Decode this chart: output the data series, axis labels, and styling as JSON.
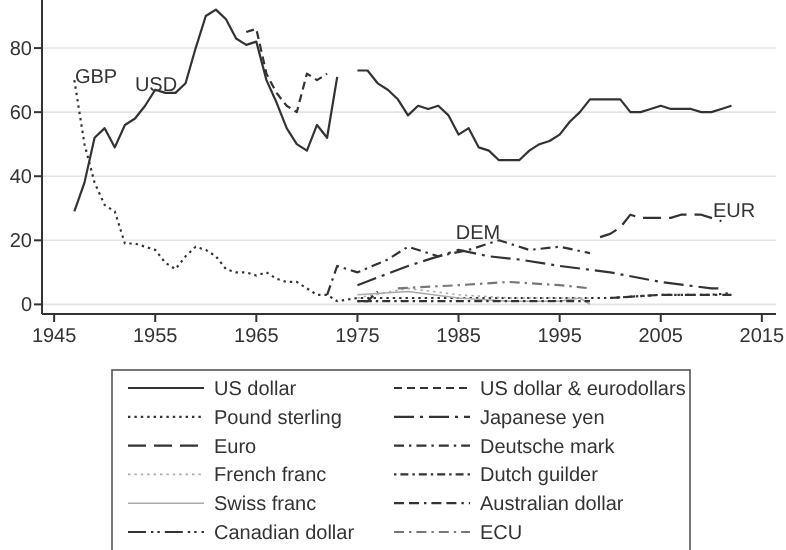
{
  "chart_data": {
    "type": "line",
    "xlim": [
      1943.8,
      2016.4
    ],
    "xticks": [
      1945,
      1955,
      1965,
      1975,
      1985,
      1995,
      2005,
      2015
    ],
    "ylim": [
      -3,
      95
    ],
    "yticks": [
      0,
      20,
      40,
      60,
      80
    ],
    "grid": "y",
    "legend": "bottom",
    "series": [
      {
        "name": "US dollar",
        "color": "#333333",
        "line_style": "solid",
        "x": [
          1947,
          1948,
          1949,
          1950,
          1951,
          1952,
          1953,
          1954,
          1955,
          1956,
          1957,
          1958,
          1959,
          1960,
          1961,
          1962,
          1963,
          1964,
          1965,
          1966,
          1967,
          1968,
          1969,
          1970,
          1971,
          1972,
          1973,
          1974,
          1975,
          1976,
          1977,
          1978,
          1979,
          1980,
          1981,
          1982,
          1983,
          1984,
          1985,
          1986,
          1987,
          1988,
          1989,
          1990,
          1991,
          1992,
          1993,
          1994,
          1995,
          1996,
          1997,
          1998,
          1999,
          2000,
          2001,
          2002,
          2003,
          2004,
          2005,
          2006,
          2007,
          2008,
          2009,
          2010,
          2011,
          2012
        ],
        "values": [
          29,
          38,
          52,
          55,
          49,
          56,
          58,
          62,
          67,
          66,
          66,
          69,
          80,
          90,
          92,
          89,
          83,
          81,
          82,
          70,
          63,
          55,
          50,
          48,
          56,
          52,
          71,
          null,
          73,
          73,
          69,
          67,
          64,
          59,
          62,
          61,
          62,
          59,
          53,
          55,
          49,
          48,
          45,
          45,
          45,
          48,
          50,
          51,
          53,
          57,
          60,
          64,
          64,
          64,
          64,
          60,
          60,
          61,
          62,
          61,
          61,
          61,
          60,
          60,
          61,
          62
        ]
      },
      {
        "name": "Pound sterling",
        "color": "#333333",
        "line_style": "dotted",
        "x": [
          1947,
          1948,
          1949,
          1950,
          1951,
          1952,
          1953,
          1954,
          1955,
          1956,
          1957,
          1958,
          1959,
          1960,
          1961,
          1962,
          1963,
          1964,
          1965,
          1966,
          1967,
          1968,
          1969,
          1970,
          1971,
          1972,
          1973,
          1975,
          1980,
          1985,
          1990,
          1995,
          2000,
          2005,
          2010,
          2012
        ],
        "values": [
          70,
          50,
          38,
          31,
          29,
          19,
          19,
          18,
          17,
          13,
          11,
          15,
          18,
          17,
          15,
          11,
          10,
          10,
          9,
          10,
          8,
          7,
          7,
          5,
          3,
          3,
          1,
          2,
          2,
          2,
          2,
          2,
          2,
          3,
          3,
          3.5
        ]
      },
      {
        "name": "Euro",
        "color": "#333333",
        "line_style": "longdash",
        "x": [
          1999,
          2000,
          2001,
          2002,
          2003,
          2004,
          2005,
          2006,
          2007,
          2008,
          2009,
          2010,
          2011
        ],
        "values": [
          21,
          22,
          24,
          28,
          27,
          27,
          27,
          27,
          28,
          28,
          28,
          27,
          26
        ]
      },
      {
        "name": "French franc",
        "color": "#aaaaaa",
        "line_style": "dotted",
        "x": [
          1975,
          1980,
          1985,
          1990,
          1995,
          1998
        ],
        "values": [
          2,
          5,
          3,
          2,
          2,
          2
        ]
      },
      {
        "name": "Swiss franc",
        "color": "#aaaaaa",
        "line_style": "solid",
        "x": [
          1975,
          1980,
          1985,
          1990,
          1995,
          1997,
          1998
        ],
        "values": [
          3,
          4,
          2,
          1,
          1,
          2,
          0
        ]
      },
      {
        "name": "Canadian dollar",
        "color": "#333333",
        "line_style": "longdashdotdot",
        "x": [
          1975,
          1976,
          1977
        ],
        "values": [
          1,
          1,
          4
        ]
      },
      {
        "name": "US dollar & eurodollars",
        "color": "#333333",
        "line_style": "dashed",
        "x": [
          1964,
          1965,
          1966,
          1967,
          1968,
          1969,
          1970,
          1971,
          1972
        ],
        "values": [
          85,
          86,
          72,
          66,
          62,
          60,
          72,
          70,
          72
        ]
      },
      {
        "name": "Japanese yen",
        "color": "#333333",
        "line_style": "longdashdot",
        "x": [
          1975,
          1980,
          1985,
          1988,
          1991,
          1995,
          2000,
          2005,
          2010,
          2011
        ],
        "values": [
          6,
          12,
          17,
          15,
          14,
          12,
          10,
          7,
          5,
          5
        ]
      },
      {
        "name": "Deutsche mark",
        "color": "#333333",
        "line_style": "dashdot",
        "x": [
          1972,
          1973,
          1975,
          1978,
          1980,
          1983,
          1986,
          1989,
          1992,
          1995,
          1998
        ],
        "values": [
          3,
          12,
          10,
          14,
          18,
          15,
          17,
          20,
          17,
          18,
          16
        ]
      },
      {
        "name": "Dutch guilder",
        "color": "#333333",
        "line_style": "dotdash",
        "x": [
          1975,
          1980,
          1985,
          1990,
          1995,
          1998
        ],
        "values": [
          1,
          1,
          1,
          1,
          1,
          1
        ]
      },
      {
        "name": "Australian dollar",
        "color": "#333333",
        "line_style": "dashdashdot",
        "x": [
          2000,
          2005,
          2010,
          2012
        ],
        "values": [
          2,
          3,
          3,
          3
        ]
      },
      {
        "name": "ECU",
        "color": "#777777",
        "line_style": "dashdot",
        "x": [
          1979,
          1985,
          1990,
          1995,
          1998
        ],
        "values": [
          5,
          6,
          7,
          6,
          5
        ]
      }
    ],
    "annotations": [
      "GBP",
      "USD",
      "DEM",
      "EUR"
    ]
  }
}
